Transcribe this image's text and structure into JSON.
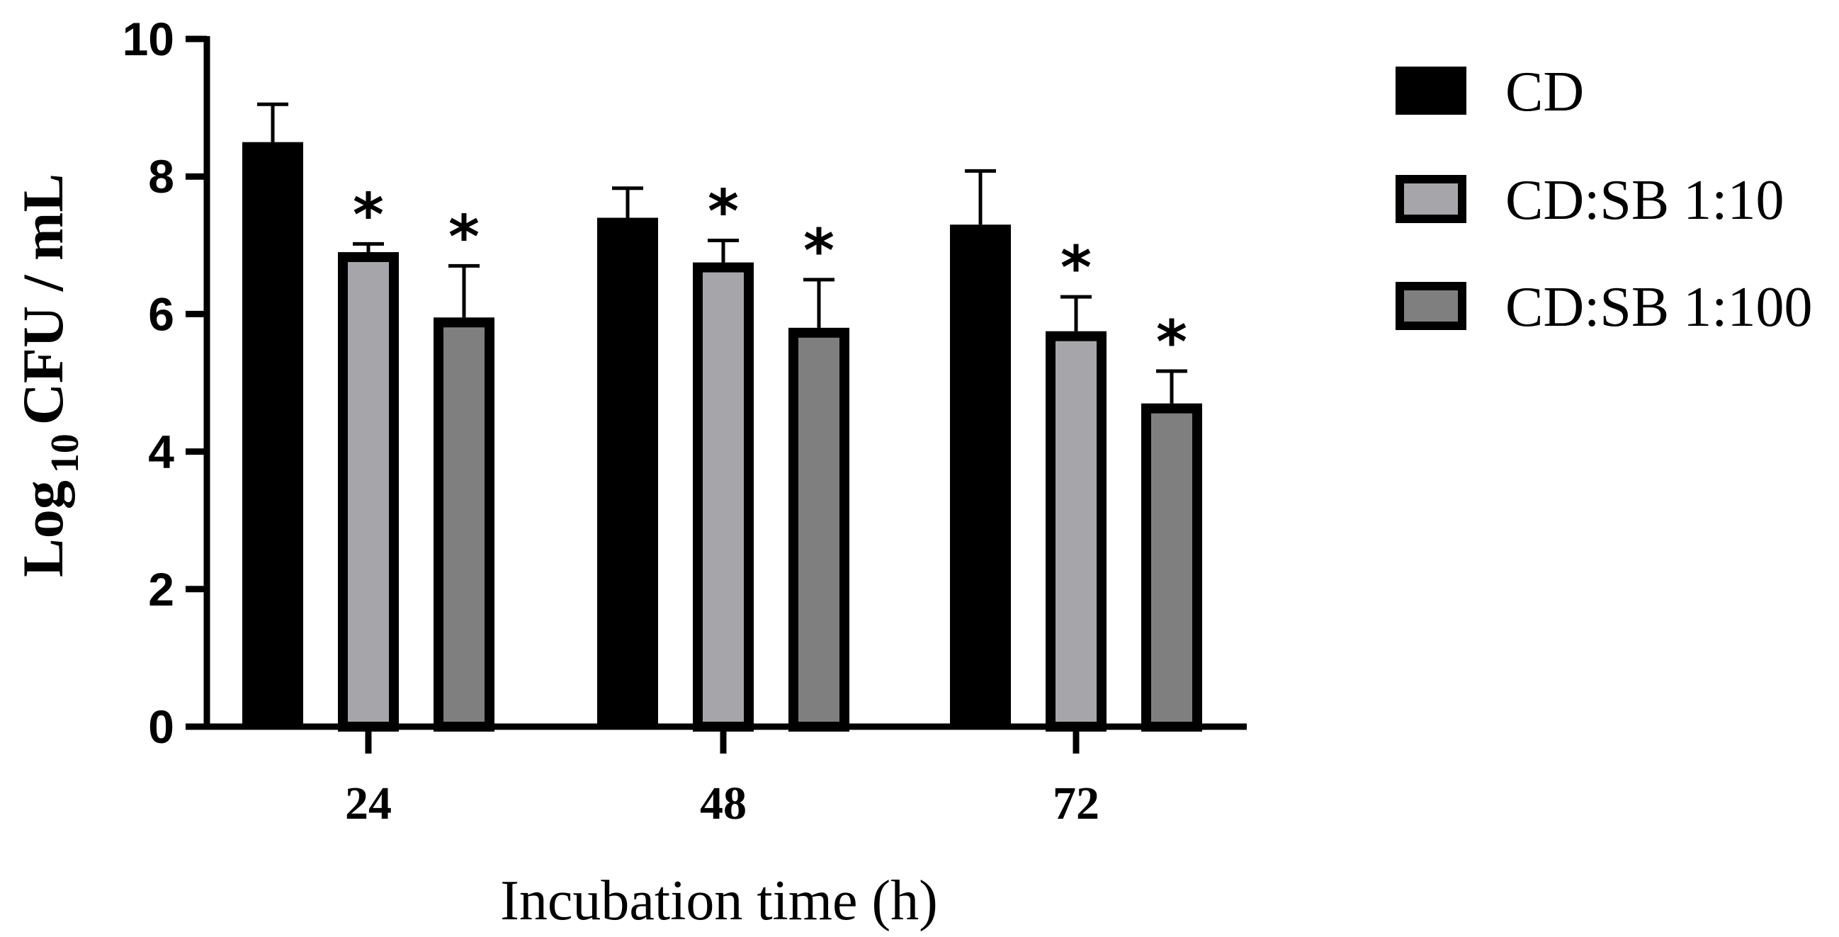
{
  "chart_data": {
    "type": "bar",
    "title": "",
    "categories": [
      "24",
      "48",
      "72"
    ],
    "series": [
      {
        "name": "CD",
        "color": "#000000",
        "values": [
          8.5,
          7.4,
          7.3
        ],
        "errors": [
          0.55,
          0.43,
          0.78
        ],
        "significant": [
          false,
          false,
          false
        ]
      },
      {
        "name": "CD:SB 1:10",
        "color": "#a6a6aa",
        "values": [
          6.9,
          6.75,
          5.75
        ],
        "errors": [
          0.12,
          0.32,
          0.5
        ],
        "significant": [
          true,
          true,
          true
        ]
      },
      {
        "name": "CD:SB 1:100",
        "color": "#7f7f7f",
        "values": [
          5.95,
          5.8,
          4.7
        ],
        "errors": [
          0.75,
          0.7,
          0.47
        ],
        "significant": [
          true,
          true,
          true
        ]
      }
    ],
    "yticks": [
      "0",
      "2",
      "4",
      "6",
      "8",
      "10"
    ],
    "ylim": [
      0,
      10
    ],
    "xlabel": "Incubation time (h)",
    "ylabel": {
      "main": "Log",
      "sub": "10",
      "rest": "CFU / mL"
    },
    "significance_marker": "*",
    "legend_position": "right"
  }
}
